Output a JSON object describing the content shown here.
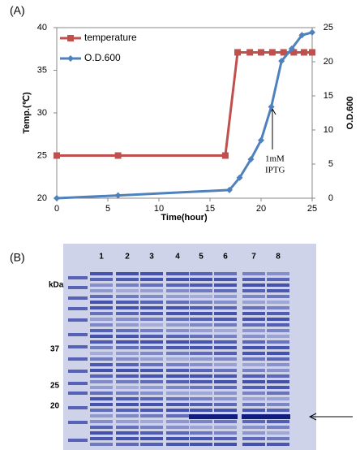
{
  "panel_labels": {
    "a": "(A)",
    "b": "(B)"
  },
  "chart_data": {
    "type": "line",
    "x_label": "Time(hour)",
    "y_label": "Temp.(℃)",
    "y2_label": "O.D.600",
    "xlim": [
      0,
      25
    ],
    "xticks": [
      0,
      5,
      10,
      15,
      20,
      25
    ],
    "ylim": [
      20,
      40
    ],
    "yticks": [
      20,
      25,
      30,
      35,
      40
    ],
    "y2lim": [
      0,
      25
    ],
    "y2ticks": [
      0,
      5,
      10,
      15,
      20,
      25
    ],
    "legend": "upper left",
    "series": [
      {
        "name": "temperature",
        "color": "#c0504d",
        "marker": "square",
        "x": [
          0,
          6,
          16.5,
          17.7,
          18.9,
          20,
          21.1,
          22.2,
          23.2,
          24.2,
          25
        ],
        "values": [
          25,
          25,
          25,
          37.1,
          37.1,
          37.1,
          37.1,
          37.1,
          37.1,
          37.1,
          37.1
        ]
      },
      {
        "name": "O.D.600",
        "color": "#4f81bd",
        "marker": "diamond",
        "axis": "y2",
        "x": [
          0,
          6,
          16.9,
          17.9,
          19,
          20,
          21,
          22,
          23,
          24,
          25
        ],
        "values": [
          0,
          0.4,
          1.2,
          3,
          5.7,
          8.5,
          13.4,
          20.1,
          21.9,
          23.9,
          24.3
        ]
      }
    ],
    "annotation": {
      "line1": "1mM",
      "line2": "IPTG"
    }
  },
  "gel": {
    "unit": "kDa",
    "lanes": [
      "1",
      "2",
      "3",
      "4",
      "5",
      "6",
      "7",
      "8"
    ],
    "markers": [
      "37",
      "25",
      "20"
    ]
  }
}
